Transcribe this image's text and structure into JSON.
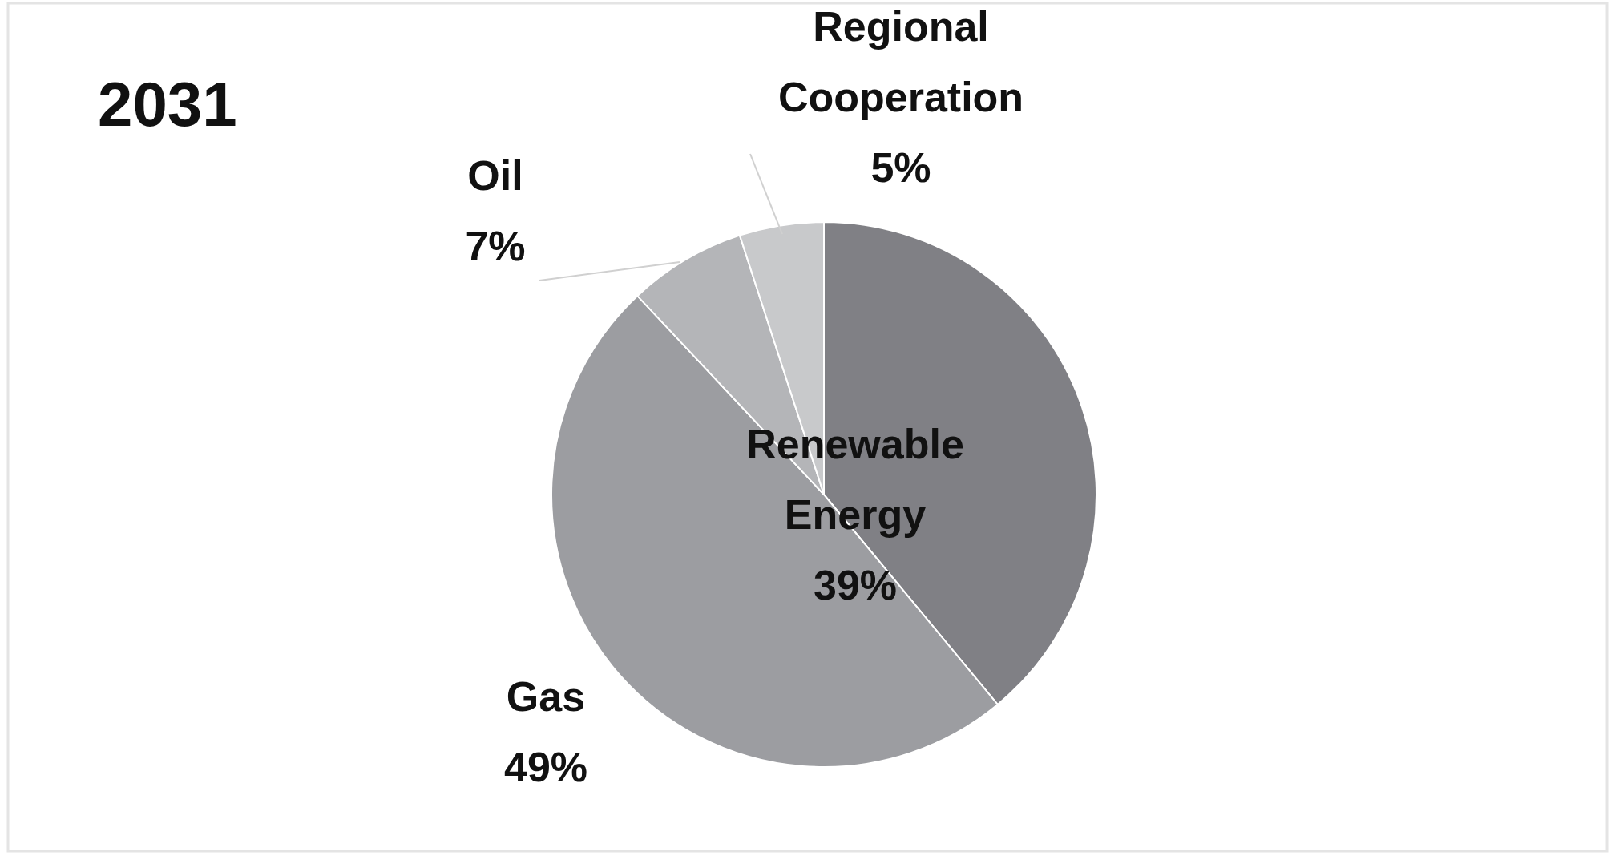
{
  "chart_data": {
    "type": "pie",
    "title": "2031",
    "categories": [
      "Renewable Energy",
      "Gas",
      "Oil",
      "Regional Cooperation"
    ],
    "values": [
      39,
      49,
      7,
      5
    ],
    "value_labels": [
      "39%",
      "49%",
      "7%",
      "5%"
    ],
    "colors": [
      "#808085",
      "#9c9da1",
      "#b4b5b8",
      "#c8c9cb"
    ]
  }
}
